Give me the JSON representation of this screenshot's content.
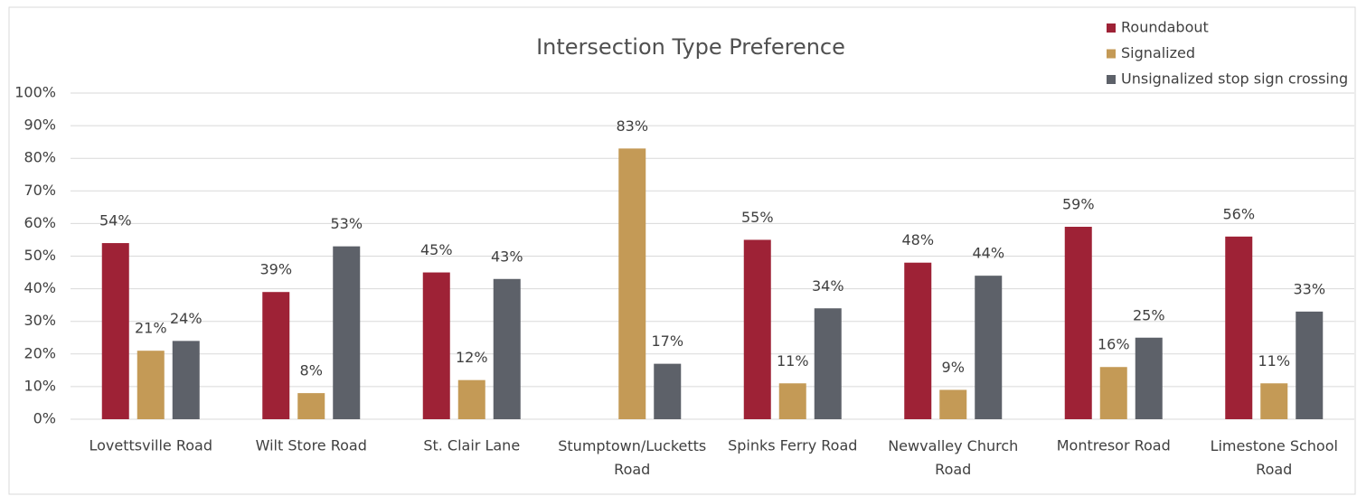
{
  "chart_data": {
    "type": "bar",
    "title": "Intersection Type Preference",
    "categories": [
      "Lovettsville Road",
      "Wilt Store Road",
      "St. Clair Lane",
      "Stumptown/Lucketts Road",
      "Spinks Ferry Road",
      "Newvalley Church Road",
      "Montresor Road",
      "Limestone School Road"
    ],
    "series": [
      {
        "name": "Roundabout",
        "color": "#9e2236",
        "values": [
          54,
          39,
          45,
          null,
          55,
          48,
          59,
          56
        ],
        "value_labels": [
          "54%",
          "39%",
          "45%",
          null,
          "55%",
          "48%",
          "59%",
          "56%"
        ]
      },
      {
        "name": "Signalized",
        "color": "#c49a56",
        "values": [
          21,
          8,
          12,
          83,
          11,
          9,
          16,
          11
        ],
        "value_labels": [
          "21%",
          "8%",
          "12%",
          "83%",
          "11%",
          "9%",
          "16%",
          "11%"
        ]
      },
      {
        "name": "Unsignalized stop sign crossing",
        "color": "#5d6169",
        "values": [
          24,
          53,
          43,
          17,
          34,
          44,
          25,
          33
        ],
        "value_labels": [
          "24%",
          "53%",
          "43%",
          "17%",
          "34%",
          "44%",
          "25%",
          "33%"
        ]
      }
    ],
    "ylim": [
      0,
      100
    ],
    "yticks": [
      {
        "value": 0,
        "label": "0%"
      },
      {
        "value": 10,
        "label": "10%"
      },
      {
        "value": 20,
        "label": "20%"
      },
      {
        "value": 30,
        "label": "30%"
      },
      {
        "value": 40,
        "label": "40%"
      },
      {
        "value": 50,
        "label": "50%"
      },
      {
        "value": 60,
        "label": "60%"
      },
      {
        "value": 70,
        "label": "70%"
      },
      {
        "value": 80,
        "label": "80%"
      },
      {
        "value": 90,
        "label": "90%"
      },
      {
        "value": 100,
        "label": "100%"
      }
    ],
    "grid": true,
    "legend": "top-right"
  }
}
